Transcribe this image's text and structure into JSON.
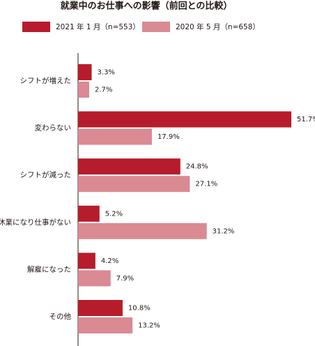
{
  "chart_data": {
    "type": "hbar",
    "title": "就業中のお仕事への影響（前回との比較）",
    "categories": [
      "シフトが増えた",
      "変わらない",
      "シフトが減った",
      "休業になり仕事がない",
      "解雇になった",
      "その他"
    ],
    "series": [
      {
        "name": "2021 年 1 月（n=553）",
        "color": "#b71c2c",
        "values": [
          3.3,
          51.7,
          24.8,
          5.2,
          4.2,
          10.8
        ],
        "value_labels": [
          "3.3%",
          "51.7%",
          "24.8%",
          "5.2%",
          "4.2%",
          "10.8%"
        ]
      },
      {
        "name": "2020 年 5 月（n=658）",
        "color": "#d98a93",
        "values": [
          2.7,
          17.9,
          27.1,
          31.2,
          7.9,
          13.2
        ],
        "value_labels": [
          "2.7%",
          "17.9%",
          "27.1%",
          "31.2%",
          "7.9%",
          "13.2%"
        ]
      }
    ]
  }
}
